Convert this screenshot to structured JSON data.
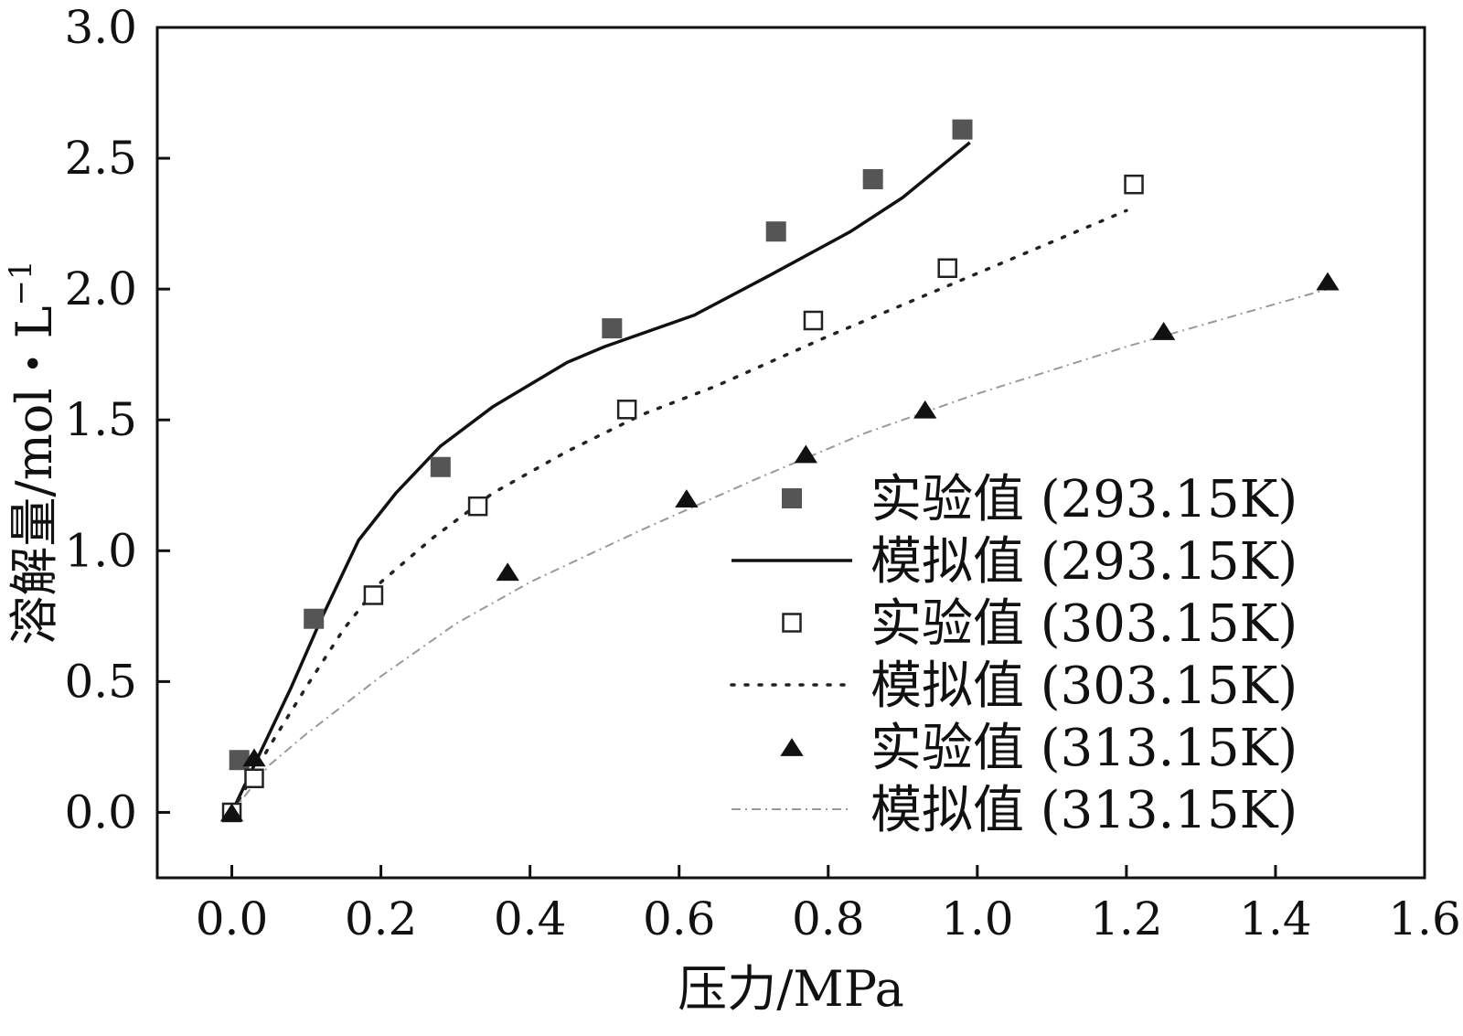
{
  "chart_data": {
    "type": "scatter+line",
    "title": "",
    "xlabel": "压力/MPa",
    "ylabel": "溶解量/mol・L",
    "ylabel_superscript": "−1",
    "xlim": [
      -0.1,
      1.6
    ],
    "ylim": [
      -0.25,
      3.0
    ],
    "xticks": [
      0.0,
      0.2,
      0.4,
      0.6,
      0.8,
      1.0,
      1.2,
      1.4,
      1.6
    ],
    "yticks": [
      0.0,
      0.5,
      1.0,
      1.5,
      2.0,
      2.5,
      3.0
    ],
    "xtick_labels": [
      "0.0",
      "0.2",
      "0.4",
      "0.6",
      "0.8",
      "1.0",
      "1.2",
      "1.4",
      "1.6"
    ],
    "ytick_labels": [
      "0.0",
      "0.5",
      "1.0",
      "1.5",
      "2.0",
      "2.5",
      "3.0"
    ],
    "legend_position": "bottom-right",
    "series": [
      {
        "name": "实验值  (293.15K)",
        "kind": "marker",
        "marker": "filled-square",
        "color": "#555555",
        "x": [
          0.01,
          0.11,
          0.28,
          0.51,
          0.73,
          0.86,
          0.98
        ],
        "y": [
          0.2,
          0.74,
          1.32,
          1.85,
          2.22,
          2.42,
          2.61
        ]
      },
      {
        "name": "模拟值  (293.15K)",
        "kind": "line",
        "style": "solid",
        "color": "#111111",
        "x": [
          0.0,
          0.03,
          0.08,
          0.12,
          0.17,
          0.22,
          0.28,
          0.35,
          0.45,
          0.5,
          0.62,
          0.72,
          0.83,
          0.9,
          0.99
        ],
        "y": [
          0.0,
          0.18,
          0.48,
          0.74,
          1.04,
          1.22,
          1.4,
          1.55,
          1.72,
          1.78,
          1.9,
          2.05,
          2.22,
          2.35,
          2.56
        ]
      },
      {
        "name": "实验值  (303.15K)",
        "kind": "marker",
        "marker": "open-square",
        "color": "#222222",
        "x": [
          0.0,
          0.03,
          0.19,
          0.33,
          0.53,
          0.78,
          0.96,
          1.21
        ],
        "y": [
          0.0,
          0.13,
          0.83,
          1.17,
          1.54,
          1.88,
          2.08,
          2.4
        ]
      },
      {
        "name": "模拟值  (303.15K)",
        "kind": "line",
        "style": "dotted",
        "color": "#222222",
        "x": [
          0.0,
          0.05,
          0.1,
          0.15,
          0.2,
          0.27,
          0.35,
          0.45,
          0.55,
          0.65,
          0.8,
          0.95,
          1.1,
          1.2
        ],
        "y": [
          0.0,
          0.25,
          0.48,
          0.7,
          0.88,
          1.05,
          1.22,
          1.38,
          1.52,
          1.63,
          1.82,
          2.0,
          2.18,
          2.3
        ]
      },
      {
        "name": "实验值  (313.15K)",
        "kind": "marker",
        "marker": "filled-triangle",
        "color": "#111111",
        "x": [
          0.0,
          0.03,
          0.37,
          0.61,
          0.77,
          0.93,
          1.25,
          1.47
        ],
        "y": [
          0.0,
          0.21,
          0.92,
          1.2,
          1.37,
          1.54,
          1.84,
          2.03
        ]
      },
      {
        "name": "模拟值  (313.15K)",
        "kind": "line",
        "style": "dash-dot",
        "color": "#999999",
        "x": [
          0.0,
          0.05,
          0.1,
          0.2,
          0.3,
          0.4,
          0.55,
          0.7,
          0.85,
          1.0,
          1.2,
          1.47
        ],
        "y": [
          0.0,
          0.18,
          0.3,
          0.52,
          0.72,
          0.88,
          1.08,
          1.27,
          1.45,
          1.6,
          1.78,
          2.0
        ]
      }
    ]
  }
}
